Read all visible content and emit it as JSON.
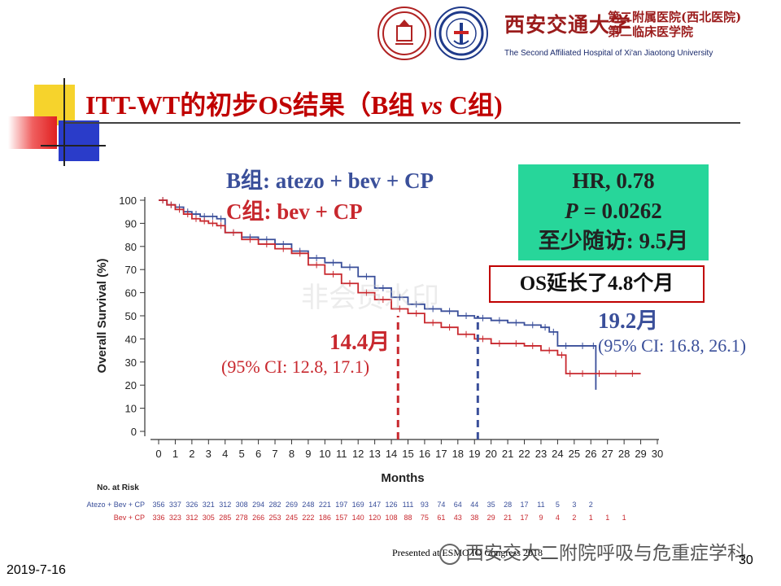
{
  "header": {
    "hospital_cn_main": "西安交通大学",
    "hospital_cn_line1": "第二附属医院(西北医院)",
    "hospital_cn_line2": "第二临床医学院",
    "hospital_en": "The Second Affiliated Hospital of Xi'an Jiaotong University"
  },
  "title": {
    "part1": "ITT-WT的初步OS结果（B组 ",
    "vs": "vs",
    "part2": " C组)"
  },
  "legend": {
    "b": "B组: atezo + bev + CP",
    "c": "C组: bev + CP"
  },
  "hr_box": {
    "hr": "HR, 0.78",
    "p_label": "P",
    "p_value": " = 0.0262",
    "followup": "至少随访: 9.5月"
  },
  "os_box": "OS延长了4.8个月",
  "medians": {
    "b_value": "19.2月",
    "b_ci": "(95% CI: 16.8, 26.1)",
    "c_value": "14.4月",
    "c_ci": "(95% CI: 12.8, 17.1)"
  },
  "footer": {
    "date": "2019-7-16",
    "page": "30",
    "presented": "Presented at ESMO IO Congress 2018",
    "wechat": "西安交大二附院呼吸与危重症学科"
  },
  "watermark": "非会员水印",
  "colors": {
    "b": "#3a4f9a",
    "c": "#c8282e",
    "title": "#c00000",
    "hr_box": "#27d69a"
  },
  "chart_data": {
    "type": "line",
    "xlabel": "Months",
    "ylabel": "Overall Survival (%)",
    "xlim": [
      0,
      30
    ],
    "ylim": [
      0,
      100
    ],
    "x_ticks": [
      0,
      1,
      2,
      3,
      4,
      5,
      6,
      7,
      8,
      9,
      10,
      11,
      12,
      13,
      14,
      15,
      16,
      17,
      18,
      19,
      20,
      21,
      22,
      23,
      24,
      25,
      26,
      27,
      28,
      29,
      30
    ],
    "y_ticks": [
      0,
      10,
      20,
      30,
      40,
      50,
      60,
      70,
      80,
      90,
      100
    ],
    "series": [
      {
        "name": "Atezo + Bev + CP",
        "color": "#3a4f9a",
        "x": [
          0,
          0.5,
          1,
          1.5,
          2,
          2.5,
          3,
          3.5,
          4,
          5,
          6,
          7,
          8,
          9,
          10,
          11,
          12,
          13,
          14,
          15,
          16,
          17,
          18,
          19,
          20,
          21,
          22,
          23,
          23.5,
          24,
          25,
          26,
          26.3
        ],
        "y": [
          100,
          98,
          97,
          95,
          94,
          93,
          93,
          92,
          86,
          84,
          83,
          81,
          78,
          75,
          73,
          71,
          67,
          62,
          58,
          55,
          53,
          52,
          50,
          49,
          48,
          47,
          46,
          45,
          43,
          37,
          37,
          37,
          18
        ]
      },
      {
        "name": "Bev + CP",
        "color": "#c8282e",
        "x": [
          0,
          0.5,
          1,
          1.5,
          2,
          2.5,
          3,
          3.5,
          4,
          5,
          6,
          7,
          8,
          9,
          10,
          11,
          12,
          13,
          14,
          15,
          16,
          17,
          18,
          19,
          20,
          21,
          22,
          23,
          24,
          24.5,
          25,
          26,
          27,
          28,
          29
        ],
        "y": [
          100,
          98,
          96,
          94,
          92,
          91,
          90,
          89,
          86,
          83,
          81,
          79,
          77,
          72,
          68,
          64,
          60,
          57,
          53,
          51,
          47,
          45,
          42,
          40,
          38,
          38,
          37,
          35,
          33,
          25,
          25,
          25,
          25,
          25,
          25
        ]
      }
    ],
    "medians": [
      {
        "series": "Atezo + Bev + CP",
        "x": 19.2
      },
      {
        "series": "Bev + CP",
        "x": 14.4
      }
    ],
    "risk_table": {
      "title": "No. at Risk",
      "rows": [
        {
          "label": "Atezo + Bev + CP",
          "color": "#3a4f9a",
          "values": [
            "356",
            "337",
            "326",
            "321",
            "312",
            "308",
            "294",
            "282",
            "269",
            "248",
            "221",
            "197",
            "169",
            "147",
            "126",
            "111",
            "93",
            "74",
            "64",
            "44",
            "35",
            "28",
            "17",
            "11",
            "5",
            "3",
            "2"
          ]
        },
        {
          "label": "Bev + CP",
          "color": "#c8282e",
          "values": [
            "336",
            "323",
            "312",
            "305",
            "285",
            "278",
            "266",
            "253",
            "245",
            "222",
            "186",
            "157",
            "140",
            "120",
            "108",
            "88",
            "75",
            "61",
            "43",
            "38",
            "29",
            "21",
            "17",
            "9",
            "4",
            "2",
            "1",
            "1",
            "1"
          ]
        }
      ]
    }
  }
}
